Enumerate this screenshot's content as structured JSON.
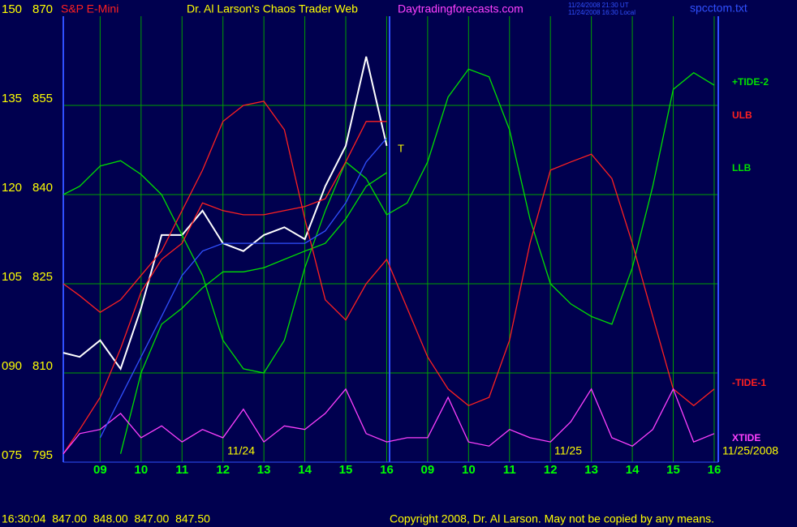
{
  "chart_data": {
    "type": "line",
    "title": "Dr. Al Larson's Chaos Trader Web",
    "subtitle": "S&P E-Mini",
    "source": "Daytradingforecasts.com",
    "timestamps": [
      "11/24/2008 21:30 UT",
      "11/24/2008 16:30 Local"
    ],
    "filename": "spcctom.txt",
    "date_labels": [
      "11/24",
      "11/25",
      "11/25/2008"
    ],
    "quote": "16:30:04  847.00  848.00  847.00  847.50",
    "copyright": "Copyright 2008, Dr. Al Larson. May not be copied by any means.",
    "marker": "T",
    "x": [
      0.1,
      0.5,
      1,
      1.5,
      2,
      2.5,
      3,
      3.5,
      4,
      4.5,
      5,
      5.5,
      6,
      6.5,
      7,
      7.5,
      8,
      8.5,
      9,
      9.5,
      10,
      10.5,
      11,
      11.5,
      12,
      12.5,
      13,
      13.5,
      14,
      14.5,
      15,
      15.5,
      16
    ],
    "xlim": [
      0.1,
      16.1
    ],
    "xticks": [
      {
        "value": 1,
        "label": "09"
      },
      {
        "value": 2,
        "label": "10"
      },
      {
        "value": 3,
        "label": "11"
      },
      {
        "value": 4,
        "label": "12"
      },
      {
        "value": 5,
        "label": "13"
      },
      {
        "value": 6,
        "label": "14"
      },
      {
        "value": 7,
        "label": "15"
      },
      {
        "value": 8,
        "label": "16"
      },
      {
        "value": 9,
        "label": "09"
      },
      {
        "value": 10,
        "label": "10"
      },
      {
        "value": 11,
        "label": "11"
      },
      {
        "value": 12,
        "label": "12"
      },
      {
        "value": 13,
        "label": "13"
      },
      {
        "value": 14,
        "label": "14"
      },
      {
        "value": 15,
        "label": "15"
      },
      {
        "value": 16,
        "label": "16"
      }
    ],
    "ylim": [
      795,
      870
    ],
    "yticks": [
      795,
      810,
      825,
      840,
      855,
      870
    ],
    "y2lim": [
      75,
      150
    ],
    "y2ticks": [
      {
        "value": 75,
        "label": "075"
      },
      {
        "value": 90,
        "label": "090"
      },
      105,
      120,
      135,
      150
    ],
    "grid": true,
    "series": [
      {
        "color": "#ffffff",
        "values": [
          813.4,
          812.7,
          815.5,
          810.7,
          820.9,
          833.2,
          833.2,
          837.3,
          831.8,
          830.5,
          833.2,
          834.5,
          832.5,
          841.4,
          848.2,
          863.2,
          848.2,
          null,
          null,
          null,
          null,
          null,
          null,
          null,
          null,
          null,
          null,
          null,
          null,
          null,
          null,
          null,
          null
        ]
      },
      {
        "name": "+TIDE-2",
        "color": "#00e000",
        "values": [
          840,
          841.4,
          844.8,
          845.7,
          843.4,
          840,
          833.2,
          826.4,
          815.5,
          810.7,
          810,
          815.5,
          827.7,
          837.3,
          845.5,
          842.7,
          836.6,
          838.6,
          845.5,
          856.4,
          861.1,
          859.8,
          850.9,
          835.9,
          825,
          821.6,
          819.5,
          818.2,
          827.7,
          841.4,
          857.7,
          860.5,
          858.4
        ]
      },
      {
        "name": "ULB",
        "color": "#ff2020",
        "values": [
          796.4,
          800.5,
          805.9,
          814.1,
          823.6,
          829.1,
          831.8,
          838.6,
          837.3,
          836.6,
          836.6,
          837.3,
          838,
          839.3,
          845.5,
          852.3,
          852.3,
          null,
          null,
          null,
          null,
          null,
          null,
          null,
          null,
          null,
          null,
          null,
          null,
          null,
          null,
          null,
          null
        ]
      },
      {
        "name": "LLB",
        "color": "#00e000",
        "values": [
          null,
          null,
          null,
          796.4,
          810,
          818.2,
          820.9,
          824.3,
          827,
          827,
          827.7,
          829.1,
          830.5,
          831.8,
          835.9,
          841.4,
          843.7,
          null,
          null,
          null,
          null,
          null,
          null,
          null,
          null,
          null,
          null,
          null,
          null,
          null,
          null,
          null,
          null
        ]
      },
      {
        "name": "-TIDE-1",
        "color": "#ff2020",
        "values": [
          825,
          823,
          820.2,
          822.3,
          826.4,
          830.5,
          837.3,
          844.1,
          852.3,
          855,
          855.7,
          850.9,
          835.9,
          822.3,
          818.9,
          825,
          829.1,
          820.9,
          812.7,
          807.3,
          804.5,
          805.9,
          815.5,
          831.8,
          844.1,
          845.5,
          846.8,
          842.7,
          831.8,
          819.5,
          807.3,
          804.5,
          807.3
        ]
      },
      {
        "name": "XTIDE",
        "color": "#ff40ff",
        "values": [
          796.4,
          799.8,
          800.5,
          803.2,
          799.1,
          801.1,
          798.4,
          800.5,
          799.1,
          803.9,
          798.4,
          801.1,
          800.5,
          803.2,
          807.3,
          799.8,
          798.4,
          799.1,
          799.1,
          805.9,
          798.4,
          797.7,
          800.5,
          799.1,
          798.4,
          801.8,
          807.3,
          799.1,
          797.7,
          800.5,
          807.3,
          798.4,
          799.8
        ]
      },
      {
        "color": "#3050ff",
        "values": [
          null,
          null,
          799.1,
          805.9,
          812.7,
          819.5,
          826.4,
          830.5,
          831.8,
          831.8,
          831.8,
          831.8,
          831.8,
          833.9,
          838.6,
          845.5,
          849.5,
          null,
          null,
          null,
          null,
          null,
          null,
          null,
          null,
          null,
          null,
          null,
          null,
          null,
          null,
          null,
          null
        ]
      }
    ]
  }
}
